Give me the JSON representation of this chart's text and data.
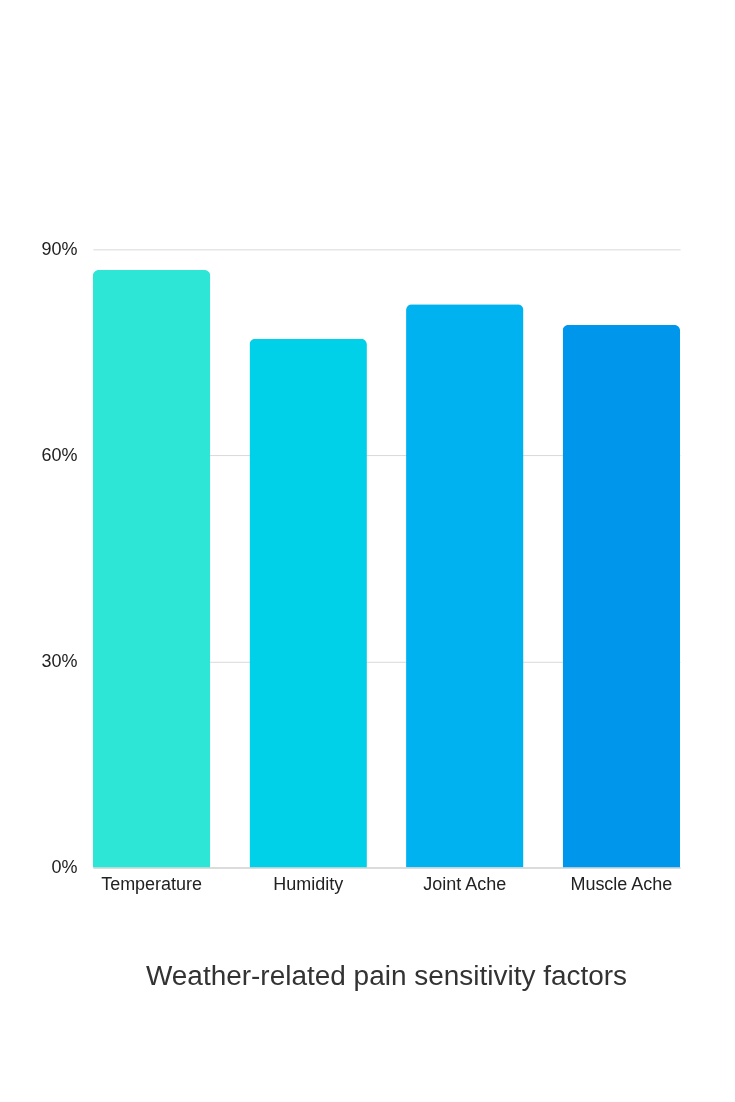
{
  "chart_data": {
    "type": "bar",
    "title": "Weather-related pain sensitivity factors",
    "categories": [
      "Temperature",
      "Humidity",
      "Joint Ache",
      "Muscle Ache"
    ],
    "values": [
      87,
      77,
      82,
      79
    ],
    "colors": [
      "#2ee6d6",
      "#00d0e8",
      "#00b2f0",
      "#0096eb"
    ],
    "ylim": [
      0,
      90
    ],
    "yticks": [
      {
        "value": 0,
        "label": "0%"
      },
      {
        "value": 30,
        "label": "30%"
      },
      {
        "value": 60,
        "label": "60%"
      },
      {
        "value": 90,
        "label": "90%"
      }
    ],
    "grid": "y"
  }
}
